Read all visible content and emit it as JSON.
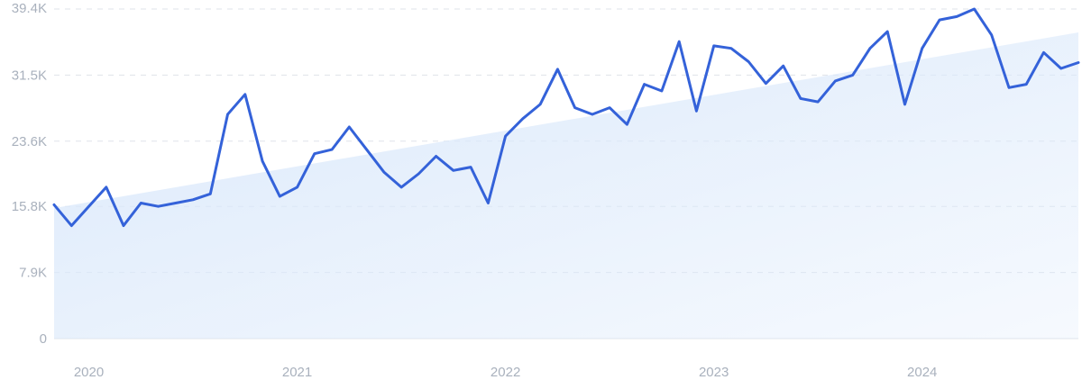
{
  "chart_data": {
    "type": "line",
    "title": "",
    "xlabel": "",
    "ylabel": "",
    "ylim": [
      0,
      39400
    ],
    "y_ticks": [
      {
        "value": 0,
        "label": "0"
      },
      {
        "value": 7900,
        "label": "7.9K"
      },
      {
        "value": 15800,
        "label": "15.8K"
      },
      {
        "value": 23600,
        "label": "23.6K"
      },
      {
        "value": 31500,
        "label": "31.5K"
      },
      {
        "value": 39400,
        "label": "39.4K"
      }
    ],
    "x_ticks": [
      {
        "value": "2020-01",
        "label": "2020"
      },
      {
        "value": "2021-01",
        "label": "2021"
      },
      {
        "value": "2022-01",
        "label": "2022"
      },
      {
        "value": "2023-01",
        "label": "2023"
      },
      {
        "value": "2024-01",
        "label": "2024"
      }
    ],
    "xlim": [
      "2019-11",
      "2024-10"
    ],
    "grid": true,
    "legend": "none",
    "colors": {
      "line": "#3462d9",
      "area_fill": "#dbe9fb"
    },
    "series": [
      {
        "name": "",
        "x": [
          "2019-11",
          "2019-12",
          "2020-01",
          "2020-02",
          "2020-03",
          "2020-04",
          "2020-05",
          "2020-06",
          "2020-07",
          "2020-08",
          "2020-09",
          "2020-10",
          "2020-11",
          "2020-12",
          "2021-01",
          "2021-02",
          "2021-03",
          "2021-04",
          "2021-05",
          "2021-06",
          "2021-07",
          "2021-08",
          "2021-09",
          "2021-10",
          "2021-11",
          "2021-12",
          "2022-01",
          "2022-02",
          "2022-03",
          "2022-04",
          "2022-05",
          "2022-06",
          "2022-07",
          "2022-08",
          "2022-09",
          "2022-10",
          "2022-11",
          "2022-12",
          "2023-01",
          "2023-02",
          "2023-03",
          "2023-04",
          "2023-05",
          "2023-06",
          "2023-07",
          "2023-08",
          "2023-09",
          "2023-10",
          "2023-11",
          "2023-12",
          "2024-01",
          "2024-02",
          "2024-03",
          "2024-04",
          "2024-05",
          "2024-06",
          "2024-07",
          "2024-08",
          "2024-09",
          "2024-10"
        ],
        "values": [
          16000,
          13500,
          15800,
          18100,
          13500,
          16200,
          15800,
          16200,
          16600,
          17300,
          26800,
          29200,
          21200,
          17000,
          18100,
          22100,
          22600,
          25300,
          22600,
          19900,
          18100,
          19700,
          21800,
          20100,
          20500,
          16200,
          24200,
          26300,
          28000,
          32200,
          27600,
          26800,
          27600,
          25600,
          30400,
          29600,
          35500,
          27200,
          35000,
          34700,
          33100,
          30500,
          32600,
          28700,
          28300,
          30800,
          31500,
          34700,
          36700,
          28000,
          34700,
          38100,
          38500,
          39400,
          36300,
          30000,
          30400,
          34200,
          32300,
          33000
        ]
      }
    ],
    "trend": {
      "type": "area",
      "x": [
        "2019-11",
        "2024-10"
      ],
      "values": [
        15600,
        36600
      ]
    }
  }
}
